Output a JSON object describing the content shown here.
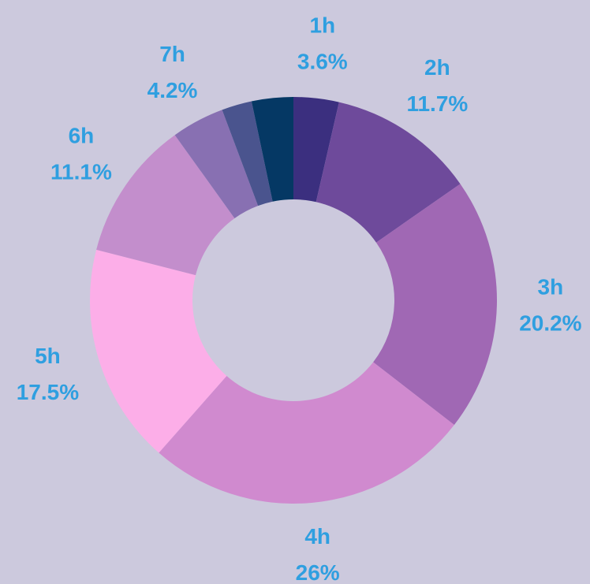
{
  "chart_data": {
    "type": "donut",
    "categories": [
      "1h",
      "2h",
      "3h",
      "4h",
      "5h",
      "6h",
      "7h",
      null,
      null
    ],
    "values": [
      3.6,
      11.7,
      20.2,
      26,
      17.5,
      11.1,
      4.2,
      2.4,
      3.3
    ],
    "value_labels": [
      "3.6%",
      "11.7%",
      "20.2%",
      "26%",
      "17.5%",
      "11.1%",
      "4.2%",
      null,
      null
    ],
    "colors": [
      "#3b2f7f",
      "#6e4a9b",
      "#a068b4",
      "#d08acf",
      "#fcaee8",
      "#c38ecc",
      "#8870b2",
      "#4a548e",
      "#053864"
    ]
  }
}
